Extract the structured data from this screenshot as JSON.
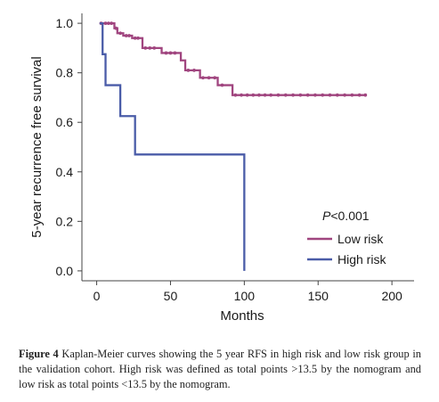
{
  "chart_data": {
    "type": "line",
    "subtype": "kaplan-meier step",
    "title": "",
    "xlabel": "Months",
    "ylabel": "5-year recurrence free survival",
    "xlim": [
      -10,
      215
    ],
    "ylim": [
      -0.04,
      1.04
    ],
    "xticks": [
      0,
      50,
      100,
      150,
      200
    ],
    "yticks": [
      0.0,
      0.2,
      0.4,
      0.6,
      0.8,
      1.0
    ],
    "xtick_labels": [
      "0",
      "50",
      "100",
      "150",
      "200"
    ],
    "ytick_labels": [
      "0.0",
      "0.2",
      "0.4",
      "0.6",
      "0.8",
      "1.0"
    ],
    "annotation": {
      "italic": "P",
      "rest": "<0.001"
    },
    "legend_position": "lower-right",
    "series": [
      {
        "name": "Low risk",
        "color": "#a0457f",
        "x": [
          2,
          12,
          14,
          18,
          24,
          31,
          44,
          57,
          60,
          70,
          82,
          92,
          100,
          115,
          130,
          145,
          160,
          182
        ],
        "y": [
          1.0,
          0.98,
          0.96,
          0.95,
          0.94,
          0.9,
          0.88,
          0.85,
          0.81,
          0.78,
          0.75,
          0.71,
          0.71,
          0.71,
          0.71,
          0.71,
          0.71,
          0.71
        ],
        "censored": [
          [
            3,
            1.0
          ],
          [
            6,
            1.0
          ],
          [
            8,
            1.0
          ],
          [
            10,
            1.0
          ],
          [
            13,
            0.98
          ],
          [
            16,
            0.96
          ],
          [
            20,
            0.95
          ],
          [
            22,
            0.95
          ],
          [
            26,
            0.94
          ],
          [
            28,
            0.94
          ],
          [
            33,
            0.9
          ],
          [
            36,
            0.9
          ],
          [
            39,
            0.9
          ],
          [
            47,
            0.88
          ],
          [
            50,
            0.88
          ],
          [
            53,
            0.88
          ],
          [
            62,
            0.81
          ],
          [
            66,
            0.81
          ],
          [
            72,
            0.78
          ],
          [
            76,
            0.78
          ],
          [
            80,
            0.78
          ],
          [
            85,
            0.75
          ],
          [
            94,
            0.71
          ],
          [
            98,
            0.71
          ],
          [
            102,
            0.71
          ],
          [
            106,
            0.71
          ],
          [
            110,
            0.71
          ],
          [
            114,
            0.71
          ],
          [
            118,
            0.71
          ],
          [
            123,
            0.71
          ],
          [
            128,
            0.71
          ],
          [
            133,
            0.71
          ],
          [
            138,
            0.71
          ],
          [
            143,
            0.71
          ],
          [
            148,
            0.71
          ],
          [
            153,
            0.71
          ],
          [
            158,
            0.71
          ],
          [
            163,
            0.71
          ],
          [
            168,
            0.71
          ],
          [
            173,
            0.71
          ],
          [
            178,
            0.71
          ],
          [
            182,
            0.71
          ]
        ]
      },
      {
        "name": "High risk",
        "color": "#4a5ca8",
        "x": [
          2,
          4,
          6,
          16,
          26,
          100
        ],
        "y": [
          1.0,
          0.875,
          0.75,
          0.625,
          0.47,
          0.235
        ],
        "end": [
          100,
          0.0
        ]
      }
    ]
  },
  "caption": {
    "label": "Figure 4",
    "text": " Kaplan-Meier curves showing the 5 year RFS in high risk and low risk group in the validation cohort. High risk was defined as total points >13.5 by the nomogram and low risk as total points <13.5 by the nomogram."
  }
}
